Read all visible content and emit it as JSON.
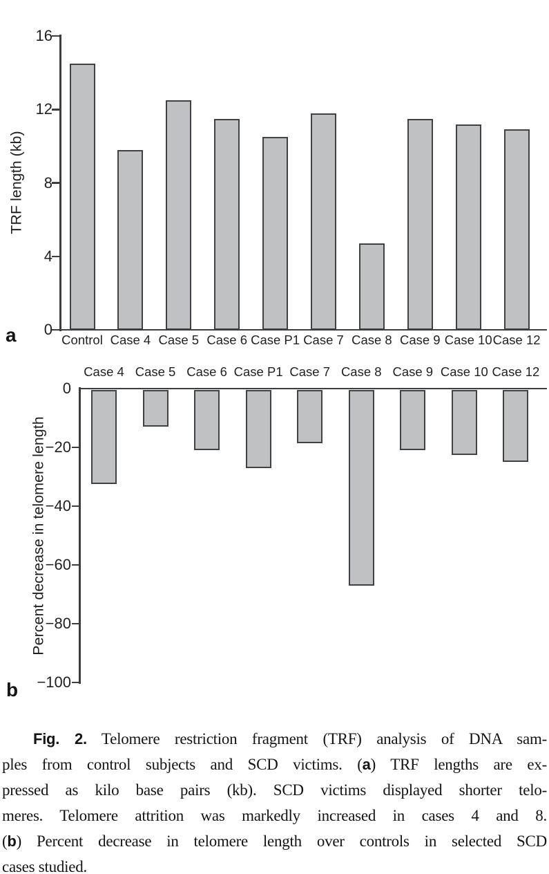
{
  "panels": {
    "a": {
      "label": "a"
    },
    "b": {
      "label": "b"
    }
  },
  "chart_data": [
    {
      "type": "bar",
      "panel": "a",
      "title": "",
      "xlabel": "",
      "ylabel": "TRF length (kb)",
      "ylim": [
        0,
        16
      ],
      "yticks": [
        16,
        12,
        8,
        4,
        0
      ],
      "ytick_labels": [
        "16",
        "12",
        "8",
        "4",
        "0"
      ],
      "categories": [
        "Control",
        "Case 4",
        "Case 5",
        "Case 6",
        "Case P1",
        "Case 7",
        "Case 8",
        "Case 9",
        "Case 10",
        "Case 12"
      ],
      "values": [
        14.5,
        9.8,
        12.5,
        11.5,
        10.5,
        11.8,
        4.7,
        11.5,
        11.2,
        10.9
      ],
      "bar_color": "#bfc1c3",
      "bar_border_color": "#404144",
      "grid": false,
      "legend": null
    },
    {
      "type": "bar",
      "panel": "b",
      "title": "",
      "xlabel": "",
      "ylabel": "Percent decrease in telomere length",
      "ylim": [
        -100,
        0
      ],
      "yticks": [
        0,
        -20,
        -40,
        -60,
        -80,
        -100
      ],
      "ytick_labels": [
        "0",
        "−20",
        "−40",
        "−60",
        "−80",
        "−100"
      ],
      "categories": [
        "Case 4",
        "Case 5",
        "Case 6",
        "Case P1",
        "Case 7",
        "Case 8",
        "Case 9",
        "Case 10",
        "Case 12"
      ],
      "values": [
        -32.5,
        -13,
        -21,
        -27,
        -18.5,
        -67,
        -21,
        -22.5,
        -25
      ],
      "bar_color": "#bfc1c3",
      "bar_border_color": "#404144",
      "grid": false,
      "legend": null
    }
  ],
  "caption": {
    "lines": [
      {
        "indent": true,
        "segments": [
          {
            "text": "Fig. 2.",
            "bold": true
          },
          {
            "text": " Telomere restriction fragment (TRF) analysis of DNA sam-"
          }
        ]
      },
      {
        "segments": [
          {
            "text": "ples from control subjects and SCD victims. ("
          },
          {
            "text": "a",
            "bold": true
          },
          {
            "text": ") TRF lengths are ex-"
          }
        ]
      },
      {
        "segments": [
          {
            "text": "pressed as kilo base pairs (kb). SCD victims displayed shorter telo-"
          }
        ]
      },
      {
        "segments": [
          {
            "text": "meres. Telomere attrition was markedly increased in cases 4 and 8."
          }
        ]
      },
      {
        "segments": [
          {
            "text": "("
          },
          {
            "text": "b",
            "bold": true
          },
          {
            "text": ") Percent decrease in telomere length over controls in selected SCD"
          }
        ]
      },
      {
        "segments": [
          {
            "text": "cases studied."
          }
        ]
      }
    ]
  }
}
